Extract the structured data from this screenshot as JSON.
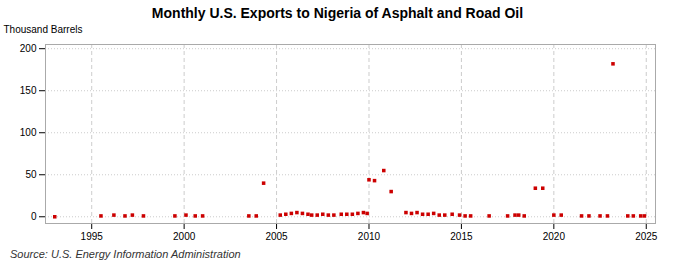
{
  "chart_data": {
    "type": "scatter",
    "title": "Monthly U.S. Exports to Nigeria of Asphalt and Road Oil",
    "ylabel": "Thousand Barrels",
    "source": "Source: U.S. Energy Information Administration",
    "color": "#cc0000",
    "marker": "square",
    "grid": true,
    "xlim": [
      1992.5,
      2025.5
    ],
    "ylim": [
      -8,
      205
    ],
    "xticks": [
      1995,
      2000,
      2005,
      2010,
      2015,
      2020,
      2025
    ],
    "yticks": [
      0,
      50,
      100,
      150,
      200
    ],
    "x": [
      1993.0,
      1995.5,
      1996.2,
      1996.8,
      1997.2,
      1997.8,
      1999.5,
      2000.1,
      2000.6,
      2001.0,
      2003.5,
      2003.9,
      2004.3,
      2005.2,
      2005.5,
      2005.8,
      2006.1,
      2006.4,
      2006.7,
      2006.9,
      2007.2,
      2007.5,
      2007.8,
      2008.1,
      2008.5,
      2008.8,
      2009.1,
      2009.4,
      2009.7,
      2009.9,
      2010.0,
      2010.3,
      2010.8,
      2011.2,
      2012.0,
      2012.3,
      2012.6,
      2012.9,
      2013.2,
      2013.5,
      2013.8,
      2014.1,
      2014.5,
      2014.9,
      2015.2,
      2015.5,
      2016.5,
      2017.5,
      2017.9,
      2018.1,
      2018.4,
      2019.0,
      2019.4,
      2020.0,
      2020.4,
      2021.5,
      2021.9,
      2022.5,
      2022.9,
      2023.2,
      2024.0,
      2024.3,
      2024.7,
      2024.9
    ],
    "values": [
      0,
      1,
      2,
      1,
      2,
      1,
      1,
      2,
      1,
      1,
      1,
      1,
      40,
      2,
      3,
      4,
      5,
      4,
      3,
      2,
      2,
      3,
      2,
      2,
      3,
      3,
      3,
      4,
      5,
      4,
      44,
      43,
      55,
      30,
      5,
      4,
      5,
      3,
      3,
      4,
      2,
      2,
      3,
      2,
      1,
      1,
      1,
      1,
      2,
      2,
      1,
      34,
      34,
      2,
      2,
      1,
      1,
      1,
      1,
      182,
      1,
      1,
      1,
      1
    ]
  }
}
